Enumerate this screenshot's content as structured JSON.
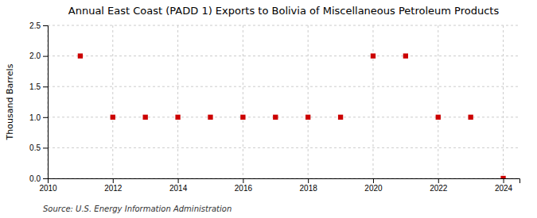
{
  "chart_data": {
    "type": "scatter",
    "title": "Annual East Coast (PADD 1) Exports to Bolivia of Miscellaneous Petroleum Products",
    "ylabel": "Thousand Barrels",
    "annotations": [
      "Source: U.S. Energy Information Administration"
    ],
    "x": [
      2011,
      2012,
      2013,
      2014,
      2015,
      2016,
      2017,
      2018,
      2019,
      2020,
      2021,
      2022,
      2023,
      2024
    ],
    "y": [
      2.0,
      1.0,
      1.0,
      1.0,
      1.0,
      1.0,
      1.0,
      1.0,
      1.0,
      2.0,
      2.0,
      1.0,
      1.0,
      0.0
    ],
    "color": "#cc0000",
    "marker": "square",
    "xlim": [
      2010,
      2024.5
    ],
    "xticks": [
      2010,
      2012,
      2014,
      2016,
      2018,
      2020,
      2022,
      2024
    ],
    "ylim": [
      0.0,
      2.5
    ],
    "yticks": [
      {
        "value": 0,
        "label": "0.0"
      },
      0.5,
      {
        "value": 1,
        "label": "1.0"
      },
      1.5,
      {
        "value": 2,
        "label": "2.0"
      },
      2.5
    ],
    "grid": true
  }
}
